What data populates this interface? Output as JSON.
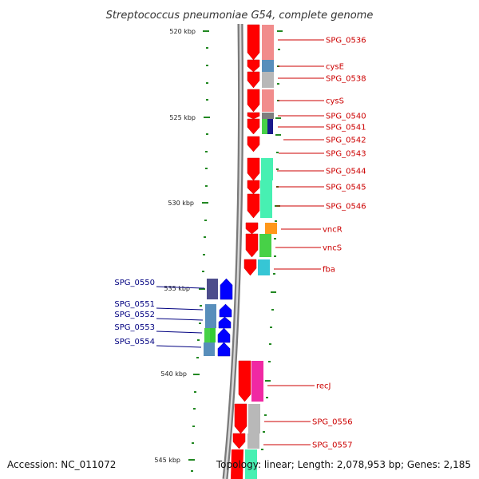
{
  "title": "Streptococcus pneumoniae G54, complete genome",
  "footer": {
    "accession": "Accession: NC_011072",
    "topology": "Topology: linear; Length: 2,078,953 bp; Genes: 2,185"
  },
  "colors": {
    "forward_arrow": "#ff0000",
    "reverse_arrow": "#0000ff",
    "forward_label": "#cc0000",
    "reverse_label": "#000080",
    "tick": "#228822",
    "backbone": "#888888"
  },
  "scale_labels": [
    "520 kbp",
    "525 kbp",
    "530 kbp",
    "535 kbp",
    "540 kbp",
    "545 kbp"
  ],
  "forward_genes": [
    {
      "label": "SPG_0536",
      "class_color": "#f08080"
    },
    {
      "label": "cysE",
      "class_color": "#4682b4"
    },
    {
      "label": "SPG_0538",
      "class_color": "#b0b0b0"
    },
    {
      "label": "cysS",
      "class_color": "#f08080"
    },
    {
      "label": "SPG_0540",
      "class_color": "#707070"
    },
    {
      "label": "SPG_0541",
      "class_color": "#33cc33"
    },
    {
      "label": "SPG_0542",
      "class_color": "#000080"
    },
    {
      "label": "SPG_0543",
      "class_color": "#ffffff"
    },
    {
      "label": "SPG_0544",
      "class_color": "#33eeaa"
    },
    {
      "label": "SPG_0545",
      "class_color": "#33eeaa"
    },
    {
      "label": "SPG_0546",
      "class_color": "#33eeaa"
    },
    {
      "label": "vncR",
      "class_color": "#ff8c00"
    },
    {
      "label": "vncS",
      "class_color": "#33cc33"
    },
    {
      "label": "fba",
      "class_color": "#20c0d0"
    },
    {
      "label": "recJ",
      "class_color": "#ee1199"
    },
    {
      "label": "SPG_0556",
      "class_color": "#b0b0b0"
    },
    {
      "label": "SPG_0557",
      "class_color": "#b0b0b0"
    }
  ],
  "reverse_genes": [
    {
      "label": "SPG_0550",
      "class_color": "#3a3a80"
    },
    {
      "label": "SPG_0551",
      "class_color": "#4682b4"
    },
    {
      "label": "SPG_0552",
      "class_color": "#4682b4"
    },
    {
      "label": "SPG_0553",
      "class_color": "#33cc33"
    },
    {
      "label": "SPG_0554",
      "class_color": "#4682b4"
    }
  ]
}
